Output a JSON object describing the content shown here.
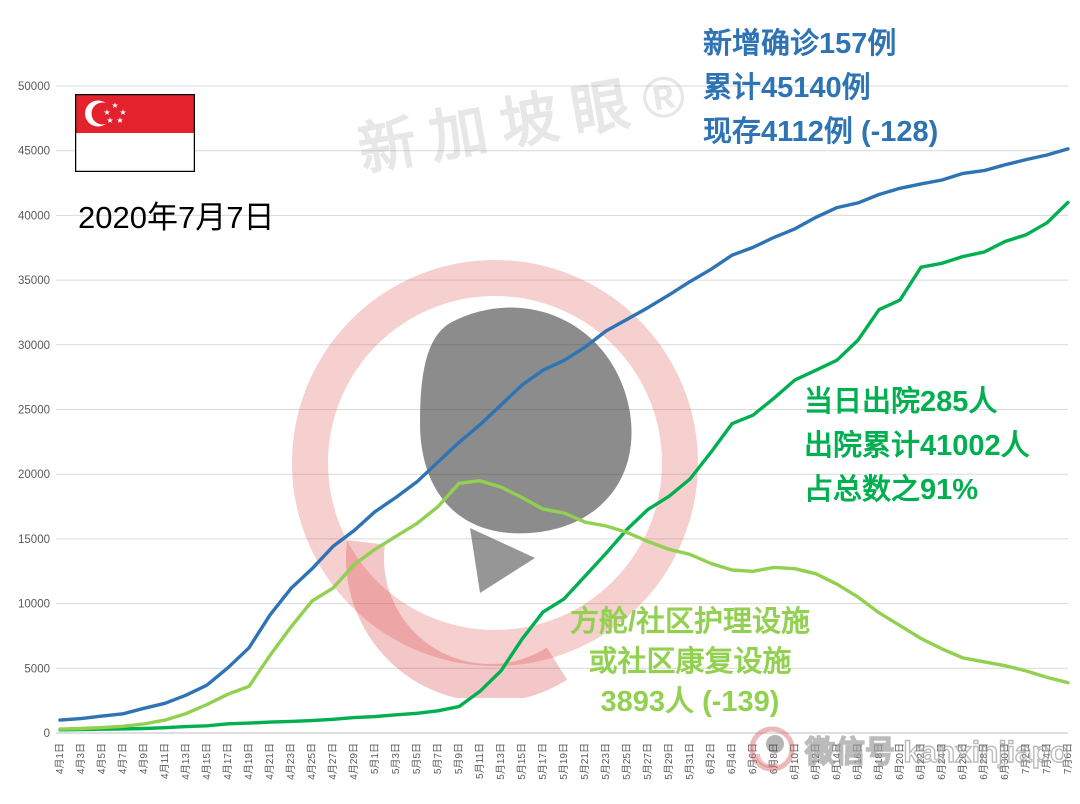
{
  "header": {
    "date_label": "2020年7月7日"
  },
  "watermarks": {
    "diagonal": "新加坡眼®",
    "bottom": "微信号 kanxinjiapo"
  },
  "annotations": {
    "confirmed": {
      "color": "#2e74b5",
      "lines": [
        "新增确诊157例",
        "累计45140例",
        "现存4112例 (-128)"
      ]
    },
    "discharged": {
      "color": "#00b050",
      "lines": [
        "当日出院285人",
        "出院累计41002人",
        "占总数之91%"
      ]
    },
    "facility": {
      "color": "#92d050",
      "lines": [
        "方舱/社区护理设施",
        "或社区康复设施",
        "3893人 (-139)"
      ]
    }
  },
  "chart_data": {
    "type": "line",
    "title": "",
    "xlabel": "",
    "ylabel": "",
    "ylim": [
      0,
      50000
    ],
    "ytick_interval": 5000,
    "grid": true,
    "legend": "none",
    "x": [
      "4月1日",
      "4月3日",
      "4月5日",
      "4月7日",
      "4月9日",
      "4月11日",
      "4月13日",
      "4月15日",
      "4月17日",
      "4月19日",
      "4月21日",
      "4月23日",
      "4月25日",
      "4月27日",
      "4月29日",
      "5月1日",
      "5月3日",
      "5月5日",
      "5月7日",
      "5月9日",
      "5月11日",
      "5月13日",
      "5月15日",
      "5月17日",
      "5月19日",
      "5月21日",
      "5月23日",
      "5月25日",
      "5月27日",
      "5月29日",
      "5月31日",
      "6月2日",
      "6月4日",
      "6月6日",
      "6月8日",
      "6月10日",
      "6月12日",
      "6月14日",
      "6月16日",
      "6月18日",
      "6月20日",
      "6月22日",
      "6月24日",
      "6月26日",
      "6月28日",
      "6月30日",
      "7月2日",
      "7月4日",
      "7月6日"
    ],
    "series": [
      {
        "name": "累计确诊",
        "color": "#2e74b5",
        "values": [
          1000,
          1114,
          1309,
          1481,
          1910,
          2299,
          2918,
          3699,
          5050,
          6588,
          9125,
          11178,
          12693,
          14423,
          15641,
          17101,
          18205,
          19410,
          20939,
          22460,
          23822,
          25346,
          26891,
          28038,
          28794,
          29812,
          31068,
          31960,
          32876,
          33860,
          34884,
          35836,
          36922,
          37527,
          38296,
          38965,
          39850,
          40604,
          40969,
          41615,
          42095,
          42432,
          42736,
          43246,
          43459,
          43907,
          44310,
          44664,
          45140
        ]
      },
      {
        "name": "出院累计",
        "color": "#00b050",
        "values": [
          245,
          266,
          297,
          320,
          344,
          412,
          492,
          560,
          708,
          768,
          839,
          896,
          956,
          1060,
          1188,
          1268,
          1408,
          1519,
          1712,
          2040,
          3225,
          4809,
          7248,
          9340,
          10365,
          12117,
          13882,
          15738,
          17276,
          18294,
          19631,
          21699,
          23904,
          24559,
          25877,
          27286,
          28040,
          28808,
          30366,
          32712,
          33459,
          35995,
          36299,
          36825,
          37163,
          37985,
          38500,
          39429,
          41002
        ]
      },
      {
        "name": "方舱/社区护理设施或社区康复设施",
        "color": "#92d050",
        "values": [
          300,
          350,
          420,
          520,
          700,
          1000,
          1500,
          2200,
          3000,
          3600,
          6000,
          8200,
          10200,
          11200,
          13000,
          14200,
          15200,
          16200,
          17500,
          19300,
          19500,
          19000,
          18200,
          17300,
          17000,
          16300,
          16000,
          15500,
          14800,
          14200,
          13800,
          13100,
          12600,
          12500,
          12800,
          12700,
          12300,
          11500,
          10500,
          9300,
          8300,
          7300,
          6500,
          5800,
          5500,
          5200,
          4800,
          4300,
          3893
        ]
      }
    ]
  }
}
